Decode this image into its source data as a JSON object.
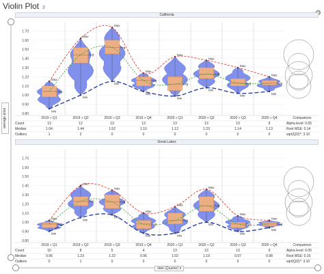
{
  "app": {
    "title": "Violin Plot",
    "icon": "share-icon"
  },
  "controls": {
    "gear_icon": "gear-icon",
    "y_selector_label": "average price",
    "x_selector_label": "date (Quarter)"
  },
  "colors": {
    "violin": "#6b7de8",
    "box": "#f7b27a",
    "max_line": "#e03b2b",
    "avg_line": "#3aa53a",
    "min_line": "#2a3f9f"
  },
  "chart_data": [
    {
      "type": "violin",
      "title": "California",
      "ylim": [
        0.8,
        1.8
      ],
      "yticks": [
        "1.70",
        "1.60",
        "1.50",
        "1.40",
        "1.30",
        "1.20",
        "1.10",
        "1.00",
        "0.90",
        "0.80"
      ],
      "categories": [
        "2019 » Q1",
        "2019 » Q2",
        "2019 » Q3",
        "2019 » Q4",
        "2020 » Q1",
        "2020 » Q2",
        "2020 » Q3",
        "2020 » Q4"
      ],
      "max": [
        1.15,
        1.62,
        1.74,
        1.24,
        1.42,
        1.38,
        1.3,
        1.2
      ],
      "avg": [
        1.04,
        1.44,
        1.52,
        1.16,
        1.12,
        1.23,
        1.13,
        1.13
      ],
      "min": [
        0.85,
        1.0,
        1.15,
        1.04,
        0.99,
        1.08,
        1.02,
        1.04
      ],
      "q1": [
        0.98,
        1.35,
        1.45,
        1.1,
        1.05,
        1.18,
        1.1,
        1.11
      ],
      "q3": [
        1.1,
        1.52,
        1.6,
        1.2,
        1.2,
        1.3,
        1.18,
        1.16
      ],
      "point_labels": {
        "max": "Max",
        "avg": "Avg",
        "min": "Min"
      },
      "table": {
        "row_headers": [
          "Count",
          "Median",
          "Outliers"
        ],
        "rows": [
          [
            "13",
            "12",
            "13",
            "13",
            "13",
            "13",
            "13",
            "9"
          ],
          [
            "1.04",
            "1.44",
            "1.52",
            "1.16",
            "1.12",
            "1.23",
            "1.14",
            "1.13"
          ],
          [
            "1",
            "2",
            "0",
            "0",
            "0",
            "0",
            "0",
            "0"
          ]
        ]
      },
      "comparison": {
        "header": "Comparison",
        "lines": [
          "Alpha level: 0.05",
          "Root MSE: 0.14",
          "sqrt(Q/2)*: 3.10"
        ]
      }
    },
    {
      "type": "violin",
      "title": "Great Lakes",
      "ylim": [
        0.8,
        1.8
      ],
      "yticks": [
        "1.70",
        "1.60",
        "1.50",
        "1.40",
        "1.30",
        "1.20",
        "1.10",
        "1.00",
        "0.90",
        "0.80"
      ],
      "categories": [
        "2019 » Q1",
        "2019 » Q2",
        "2019 » Q3",
        "2019 » Q4",
        "2020 » Q1",
        "2020 » Q2",
        "2020 » Q3",
        "2020 » Q4"
      ],
      "max": [
        1.02,
        1.4,
        1.35,
        1.1,
        1.17,
        1.36,
        1.07,
        1.02
      ],
      "avg": [
        0.98,
        1.23,
        1.22,
        0.98,
        1.02,
        1.18,
        0.98,
        0.98
      ],
      "min": [
        0.9,
        1.05,
        1.08,
        0.88,
        0.88,
        1.0,
        0.9,
        0.94
      ],
      "q1": [
        0.94,
        1.18,
        1.15,
        0.93,
        0.98,
        1.12,
        0.94,
        0.96
      ],
      "q3": [
        1.0,
        1.28,
        1.3,
        1.02,
        1.1,
        1.28,
        1.0,
        1.0
      ],
      "point_labels": {
        "max": "Max",
        "avg": "Avg",
        "min": "Min"
      },
      "table": {
        "row_headers": [
          "Count",
          "Median",
          "Outliers"
        ],
        "rows": [
          [
            "10",
            "8",
            "5",
            "4",
            "13",
            "13",
            "13",
            "9"
          ],
          [
            "0.96",
            "1.23",
            "1.22",
            "0.96",
            "1.02",
            "1.19",
            "0.97",
            "0.98"
          ],
          [
            "0",
            "1",
            "0",
            "0",
            "0",
            "0",
            "0",
            "0"
          ]
        ]
      },
      "comparison": {
        "header": "Comparison",
        "lines": [
          "Alpha level: 0.05",
          "Root MSE: 0.16",
          "sqrt(Q/2)*: 3.10"
        ]
      }
    }
  ]
}
